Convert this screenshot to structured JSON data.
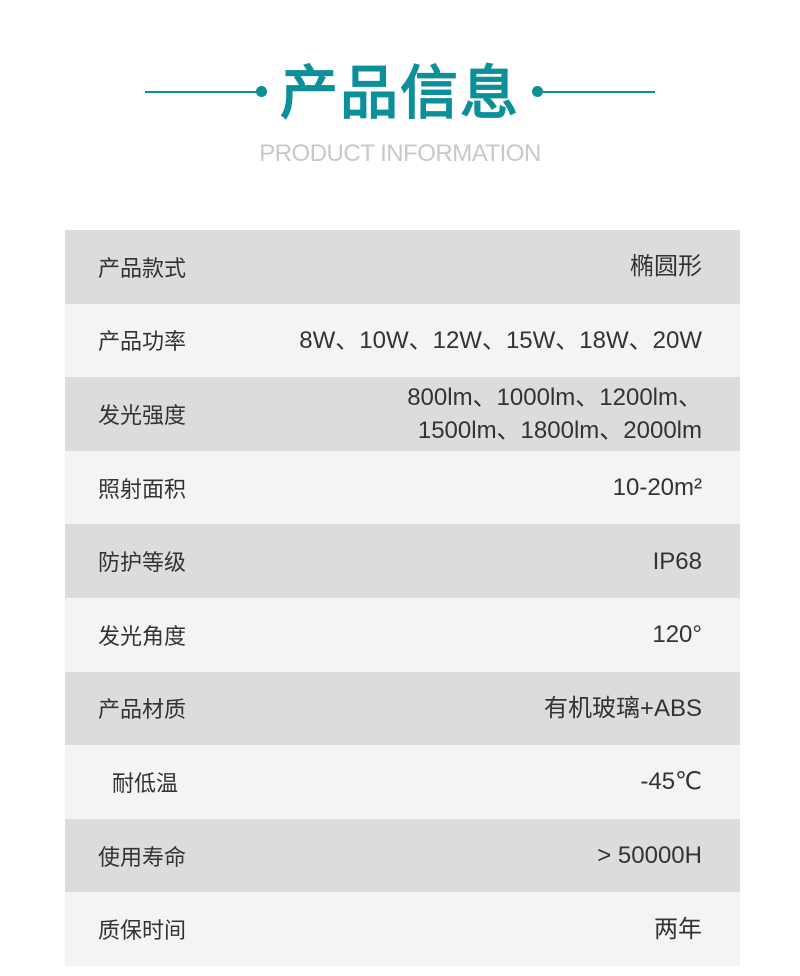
{
  "header": {
    "title": "产品信息",
    "subtitle": "PRODUCT INFORMATION",
    "accent_color": "#0b8f9a"
  },
  "specs": [
    {
      "label": "产品款式",
      "value": [
        "椭圆形"
      ]
    },
    {
      "label": "产品功率",
      "value": [
        "8W、10W、12W、15W、18W、20W"
      ]
    },
    {
      "label": "发光强度",
      "value": [
        "800lm、1000lm、1200lm、",
        "1500lm、1800lm、2000lm"
      ]
    },
    {
      "label": "照射面积",
      "value": [
        "10-20m²"
      ]
    },
    {
      "label": "防护等级",
      "value": [
        "IP68"
      ]
    },
    {
      "label": "发光角度",
      "value": [
        "120°"
      ]
    },
    {
      "label": "产品材质",
      "value": [
        "有机玻璃+ABS"
      ]
    },
    {
      "label": "耐低温",
      "value": [
        "-45℃"
      ]
    },
    {
      "label": "使用寿命",
      "value": [
        "> 50000H"
      ]
    },
    {
      "label": "质保时间",
      "value": [
        "两年"
      ]
    }
  ]
}
